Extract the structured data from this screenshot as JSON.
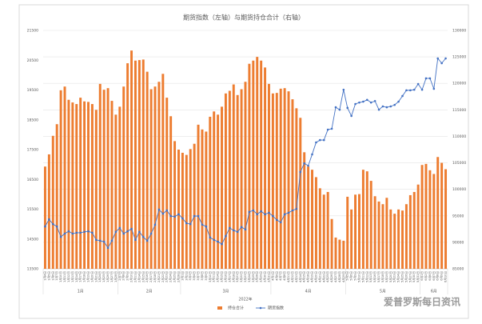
{
  "chart_data": {
    "type": "bar_line",
    "title": "期货指数（左轴）与期货持仓合计（右轴）",
    "categories": [
      "1月4日",
      "1月5日",
      "1月6日",
      "1月7日",
      "1月10日",
      "1月11日",
      "1月12日",
      "1月13日",
      "1月14日",
      "1月17日",
      "1月18日",
      "1月19日",
      "1月20日",
      "1月21日",
      "1月24日",
      "1月25日",
      "1月26日",
      "1月27日",
      "1月28日",
      "2月7日",
      "2月8日",
      "2月9日",
      "2月10日",
      "2月11日",
      "2月14日",
      "2月15日",
      "2月16日",
      "2月17日",
      "2月18日",
      "2月21日",
      "2月22日",
      "2月23日",
      "2月24日",
      "2月25日",
      "2月28日",
      "3月1日",
      "3月2日",
      "3月3日",
      "3月4日",
      "3月7日",
      "3月8日",
      "3月9日",
      "3月10日",
      "3月11日",
      "3月14日",
      "3月15日",
      "3月16日",
      "3月17日",
      "3月18日",
      "3月21日",
      "3月22日",
      "3月23日",
      "3月24日",
      "3月25日",
      "3月28日",
      "3月29日",
      "3月30日",
      "3月31日",
      "4月1日",
      "4月6日",
      "4月7日",
      "4月8日",
      "4月11日",
      "4月12日",
      "4月13日",
      "4月14日",
      "4月15日",
      "4月18日",
      "4月19日",
      "4月20日",
      "4月21日",
      "4月22日",
      "4月25日",
      "4月26日",
      "4月27日",
      "4月28日",
      "4月29日",
      "5月5日",
      "5月6日",
      "5月9日",
      "5月10日",
      "5月11日",
      "5月12日",
      "5月13日",
      "5月16日",
      "5月17日",
      "5月18日",
      "5月19日",
      "5月20日",
      "5月23日",
      "5月24日",
      "5月25日",
      "5月26日",
      "5月27日",
      "5月30日",
      "5月31日",
      "6月1日",
      "6月2日",
      "6月6日",
      "6月7日",
      "6月8日",
      "6月9日",
      "6月10日"
    ],
    "x_groups": [
      "1月",
      "2月",
      "3月",
      "4月",
      "5月",
      "6月"
    ],
    "x_group_title": "2022年",
    "series": [
      {
        "name": "持仓合计",
        "color": "#ed7d31",
        "kind": "bar",
        "axis": "y2",
        "values": [
          104300,
          106600,
          110100,
          112300,
          118700,
          119400,
          116900,
          116400,
          116100,
          117300,
          116600,
          116500,
          116100,
          115000,
          119900,
          118800,
          119100,
          116700,
          114100,
          115600,
          119400,
          123800,
          126200,
          124300,
          124400,
          124500,
          122200,
          118900,
          119400,
          120300,
          121800,
          117300,
          113800,
          109100,
          107500,
          106900,
          106500,
          107600,
          108600,
          112200,
          111300,
          110900,
          113700,
          114700,
          114100,
          115600,
          118100,
          118600,
          119800,
          117800,
          118900,
          120300,
          123700,
          124300,
          125000,
          124300,
          123000,
          119900,
          118100,
          118200,
          119000,
          119100,
          118500,
          117000,
          115300,
          113500,
          107000,
          104300,
          103700,
          102300,
          100200,
          99000,
          99500,
          94400,
          90900,
          90500,
          90300,
          98600,
          96200,
          99000,
          99100,
          103700,
          103400,
          101600,
          98700,
          97700,
          97200,
          98400,
          96200,
          95400,
          96200,
          96000,
          97200,
          98900,
          99500,
          100900,
          104600,
          104800,
          103600,
          102900,
          106100,
          105000,
          103800
        ]
      },
      {
        "name": "期货指数",
        "color": "#4472c4",
        "kind": "line",
        "values": [
          14920,
          15160,
          15000,
          14920,
          14570,
          14680,
          14760,
          14680,
          14710,
          14710,
          14740,
          14760,
          14710,
          14470,
          14440,
          14410,
          14200,
          14440,
          14740,
          14870,
          14680,
          14760,
          14840,
          14470,
          14740,
          14570,
          14440,
          14680,
          14980,
          15490,
          15350,
          15460,
          15270,
          15250,
          15330,
          15190,
          15030,
          15000,
          15270,
          15270,
          14980,
          14920,
          14550,
          14470,
          14410,
          14330,
          14600,
          14870,
          14790,
          14740,
          14900,
          14820,
          15410,
          15460,
          15330,
          15430,
          15330,
          15380,
          15270,
          15140,
          15060,
          15330,
          15380,
          15460,
          15510,
          16750,
          17040,
          16960,
          17340,
          17740,
          17820,
          17820,
          18170,
          18200,
          18920,
          18840,
          19510,
          18900,
          18630,
          19030,
          19080,
          19110,
          19170,
          19080,
          19130,
          18840,
          18950,
          18920,
          18950,
          19000,
          19110,
          19300,
          19490,
          19490,
          19510,
          19700,
          19510,
          19890,
          19890,
          19540,
          20560,
          20400,
          20560
        ]
      }
    ],
    "ylim": [
      13500,
      21500
    ],
    "yticks": [
      13500,
      14500,
      15500,
      16500,
      17500,
      18500,
      19500,
      20500,
      21500
    ],
    "y2lim": [
      85000,
      130000
    ],
    "y2ticks": [
      85000,
      90000,
      95000,
      100000,
      105000,
      110000,
      115000,
      120000,
      125000,
      130000
    ],
    "grid": true,
    "legend": "bottom",
    "watermark": "爱普罗斯每日资讯"
  }
}
